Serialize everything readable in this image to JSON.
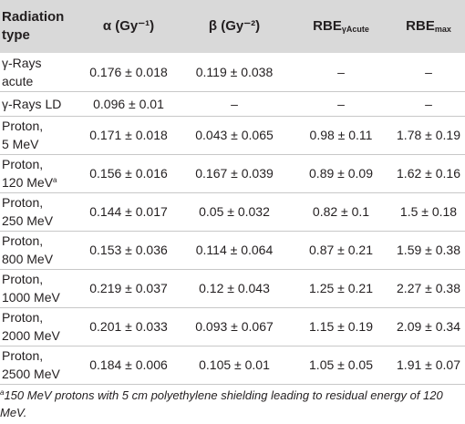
{
  "table": {
    "headers": {
      "type_line1": "Radiation",
      "type_line2": "type",
      "alpha": "α (Gy⁻¹)",
      "beta": "β (Gy⁻²)",
      "rbe_acute_base": "RBE",
      "rbe_acute_sub": "γAcute",
      "rbe_max_base": "RBE",
      "rbe_max_sub": "max"
    },
    "rows": [
      {
        "type_line1": "γ-Rays",
        "type_line2": "acute",
        "sup": "",
        "alpha": "0.176 ± 0.018",
        "beta": "0.119 ± 0.038",
        "rbe_acute": "–",
        "rbe_max": "–"
      },
      {
        "type_line1": "γ-Rays LD",
        "type_line2": "",
        "sup": "",
        "alpha": "0.096 ± 0.01",
        "beta": "–",
        "rbe_acute": "–",
        "rbe_max": "–"
      },
      {
        "type_line1": "Proton,",
        "type_line2": "5 MeV",
        "sup": "",
        "alpha": "0.171 ± 0.018",
        "beta": "0.043 ± 0.065",
        "rbe_acute": "0.98 ± 0.11",
        "rbe_max": "1.78 ± 0.19"
      },
      {
        "type_line1": "Proton,",
        "type_line2": "120 MeV",
        "sup": "a",
        "alpha": "0.156 ± 0.016",
        "beta": "0.167 ± 0.039",
        "rbe_acute": "0.89 ± 0.09",
        "rbe_max": "1.62 ± 0.16"
      },
      {
        "type_line1": "Proton,",
        "type_line2": "250 MeV",
        "sup": "",
        "alpha": "0.144 ± 0.017",
        "beta": "0.05 ± 0.032",
        "rbe_acute": "0.82 ± 0.1",
        "rbe_max": "1.5 ± 0.18"
      },
      {
        "type_line1": "Proton,",
        "type_line2": "800 MeV",
        "sup": "",
        "alpha": "0.153 ± 0.036",
        "beta": "0.114 ± 0.064",
        "rbe_acute": "0.87 ± 0.21",
        "rbe_max": "1.59 ± 0.38"
      },
      {
        "type_line1": "Proton,",
        "type_line2": "1000 MeV",
        "sup": "",
        "alpha": "0.219 ± 0.037",
        "beta": "0.12 ± 0.043",
        "rbe_acute": "1.25 ± 0.21",
        "rbe_max": "2.27 ± 0.38"
      },
      {
        "type_line1": "Proton,",
        "type_line2": "2000 MeV",
        "sup": "",
        "alpha": "0.201 ± 0.033",
        "beta": "0.093 ± 0.067",
        "rbe_acute": "1.15 ± 0.19",
        "rbe_max": "2.09 ± 0.34"
      },
      {
        "type_line1": "Proton,",
        "type_line2": "2500 MeV",
        "sup": "",
        "alpha": "0.184 ± 0.006",
        "beta": "0.105 ± 0.01",
        "rbe_acute": "1.05 ± 0.05",
        "rbe_max": "1.91 ± 0.07"
      }
    ]
  },
  "footnote": {
    "marker": "a",
    "text": "150 MeV protons with 5 cm polyethylene shielding leading to residual energy of 120 MeV."
  }
}
